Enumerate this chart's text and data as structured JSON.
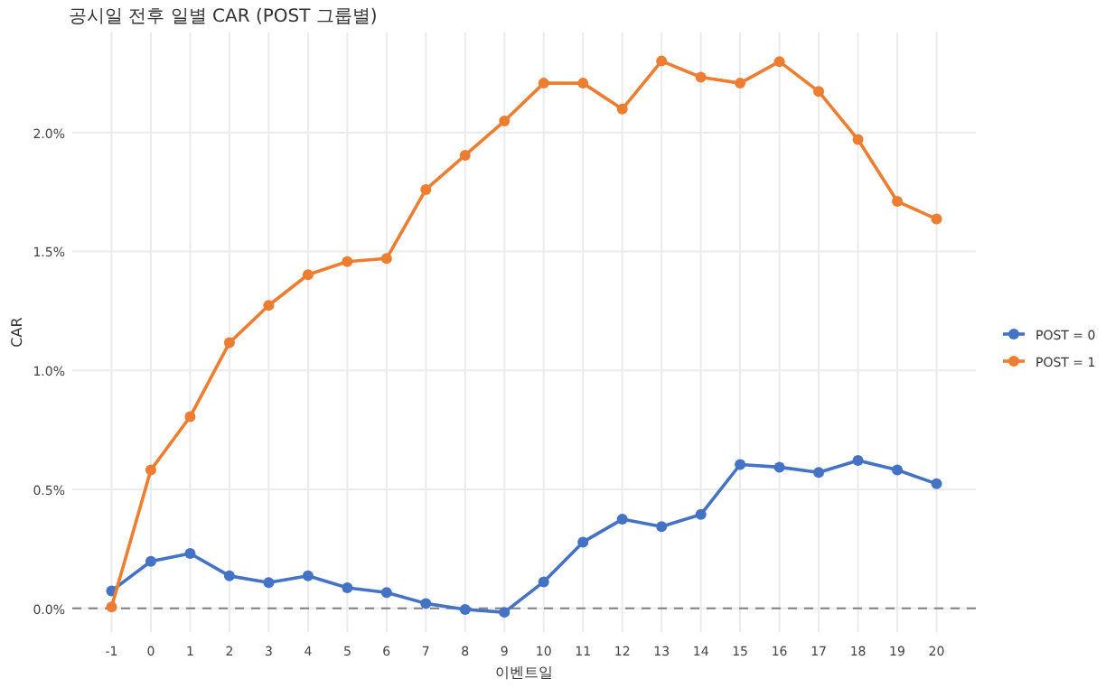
{
  "chart_data": {
    "type": "line",
    "title": "공시일 전후 일별 CAR (POST 그룹별)",
    "xlabel": "이벤트일",
    "ylabel": "CAR",
    "x": [
      -1,
      0,
      1,
      2,
      3,
      4,
      5,
      6,
      7,
      8,
      9,
      10,
      11,
      12,
      13,
      14,
      15,
      16,
      17,
      18,
      19,
      20
    ],
    "series": [
      {
        "name": "POST = 0",
        "color": "#4472c4",
        "values": [
          0.073,
          0.197,
          0.23,
          0.136,
          0.108,
          0.136,
          0.086,
          0.066,
          0.02,
          -0.005,
          -0.017,
          0.111,
          0.278,
          0.374,
          0.343,
          0.394,
          0.604,
          0.593,
          0.571,
          0.621,
          0.581,
          0.523
        ]
      },
      {
        "name": "POST = 1",
        "color": "#ed7d31",
        "values": [
          0.005,
          0.581,
          0.805,
          1.116,
          1.273,
          1.402,
          1.457,
          1.47,
          1.76,
          1.904,
          2.048,
          2.207,
          2.207,
          2.098,
          2.3,
          2.232,
          2.207,
          2.298,
          2.172,
          1.97,
          1.71,
          1.636
        ]
      }
    ],
    "xlim": [
      -2,
      21
    ],
    "xticks": [
      -1,
      0,
      1,
      2,
      3,
      4,
      5,
      6,
      7,
      8,
      9,
      10,
      11,
      12,
      13,
      14,
      15,
      16,
      17,
      18,
      19,
      20
    ],
    "ylim": [
      -0.1,
      2.42
    ],
    "yticks": [
      {
        "value": 0,
        "label": "0.0%"
      },
      {
        "value": 0.5,
        "label": "0.5%"
      },
      {
        "value": 1,
        "label": "1.0%"
      },
      {
        "value": 1.5,
        "label": "1.5%"
      },
      {
        "value": 2,
        "label": "2.0%"
      }
    ],
    "ref_lines": [
      {
        "axis": "y",
        "value": 0,
        "color": "#808080",
        "line_style": "dashed"
      }
    ],
    "grid": true,
    "legend": "right",
    "marker": "circle",
    "line_style": "solid"
  }
}
